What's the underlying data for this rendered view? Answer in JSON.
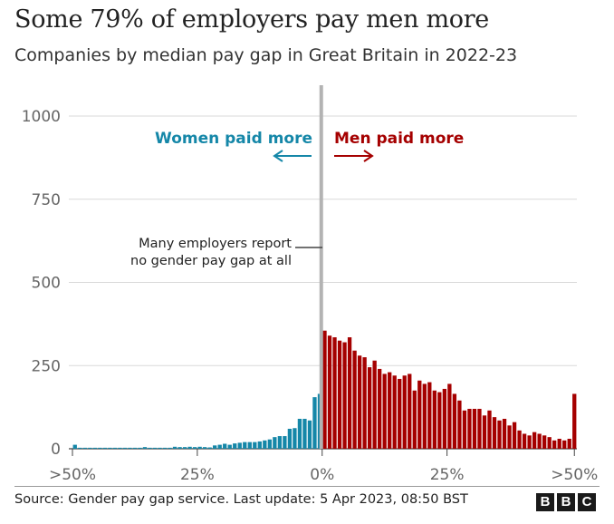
{
  "header": {
    "title": "Some 79% of employers pay men more",
    "subtitle": "Companies by median pay gap in Great Britain in 2022-23"
  },
  "footer": {
    "source": "Source: Gender pay gap service. Last update: 5 Apr 2023, 08:50 BST",
    "logo_letters": [
      "B",
      "B",
      "C"
    ]
  },
  "chart_data": {
    "type": "bar",
    "xlabel": "",
    "ylabel": "",
    "xlim": [
      -50,
      50
    ],
    "ylim": [
      0,
      1000
    ],
    "yticks": [
      0,
      250,
      500,
      750,
      1000
    ],
    "yticklabels": [
      "0",
      "250",
      "500",
      "750",
      "1000"
    ],
    "xticks": [
      -50,
      -25,
      0,
      25,
      50
    ],
    "xticklabels": [
      ">50%",
      "25%",
      "0%",
      "25%",
      ">50%"
    ],
    "grid": true,
    "annotations": {
      "left_label": "Women paid more",
      "right_label": "Men paid more",
      "arrow_left": "←",
      "arrow_right": "→",
      "zero_note": [
        "Many employers report",
        "no gender pay gap at all"
      ]
    },
    "colors": {
      "women": "#1587a8",
      "men": "#a50000",
      "zero_line": "#b3b3b3",
      "grid": "#d9d9d9",
      "axis_text": "#666666"
    },
    "series": [
      {
        "name": "Women paid more",
        "x": [
          -50,
          -49,
          -48,
          -47,
          -46,
          -45,
          -44,
          -43,
          -42,
          -41,
          -40,
          -39,
          -38,
          -37,
          -36,
          -35,
          -34,
          -33,
          -32,
          -31,
          -30,
          -29,
          -28,
          -27,
          -26,
          -25,
          -24,
          -23,
          -22,
          -21,
          -20,
          -19,
          -18,
          -17,
          -16,
          -15,
          -14,
          -13,
          -12,
          -11,
          -10,
          -9,
          -8,
          -7,
          -6,
          -5,
          -4,
          -3,
          -2,
          -1
        ],
        "values": [
          12,
          3,
          3,
          3,
          3,
          3,
          3,
          3,
          3,
          3,
          3,
          3,
          3,
          3,
          5,
          3,
          3,
          3,
          3,
          3,
          6,
          5,
          5,
          6,
          5,
          6,
          5,
          4,
          10,
          12,
          15,
          12,
          16,
          18,
          20,
          20,
          20,
          22,
          25,
          28,
          35,
          38,
          38,
          60,
          62,
          90,
          90,
          85,
          155,
          165
        ]
      },
      {
        "name": "Men paid more",
        "x": [
          0,
          1,
          2,
          3,
          4,
          5,
          6,
          7,
          8,
          9,
          10,
          11,
          12,
          13,
          14,
          15,
          16,
          17,
          18,
          19,
          20,
          21,
          22,
          23,
          24,
          25,
          26,
          27,
          28,
          29,
          30,
          31,
          32,
          33,
          34,
          35,
          36,
          37,
          38,
          39,
          40,
          41,
          42,
          43,
          44,
          45,
          46,
          47,
          48,
          49,
          50
        ],
        "values": [
          355,
          340,
          335,
          325,
          320,
          335,
          295,
          280,
          275,
          245,
          265,
          240,
          225,
          230,
          220,
          210,
          220,
          225,
          175,
          205,
          195,
          200,
          175,
          170,
          180,
          195,
          165,
          145,
          115,
          120,
          120,
          120,
          100,
          115,
          95,
          85,
          90,
          70,
          80,
          55,
          45,
          40,
          50,
          45,
          40,
          35,
          25,
          30,
          25,
          30,
          165
        ]
      }
    ]
  }
}
